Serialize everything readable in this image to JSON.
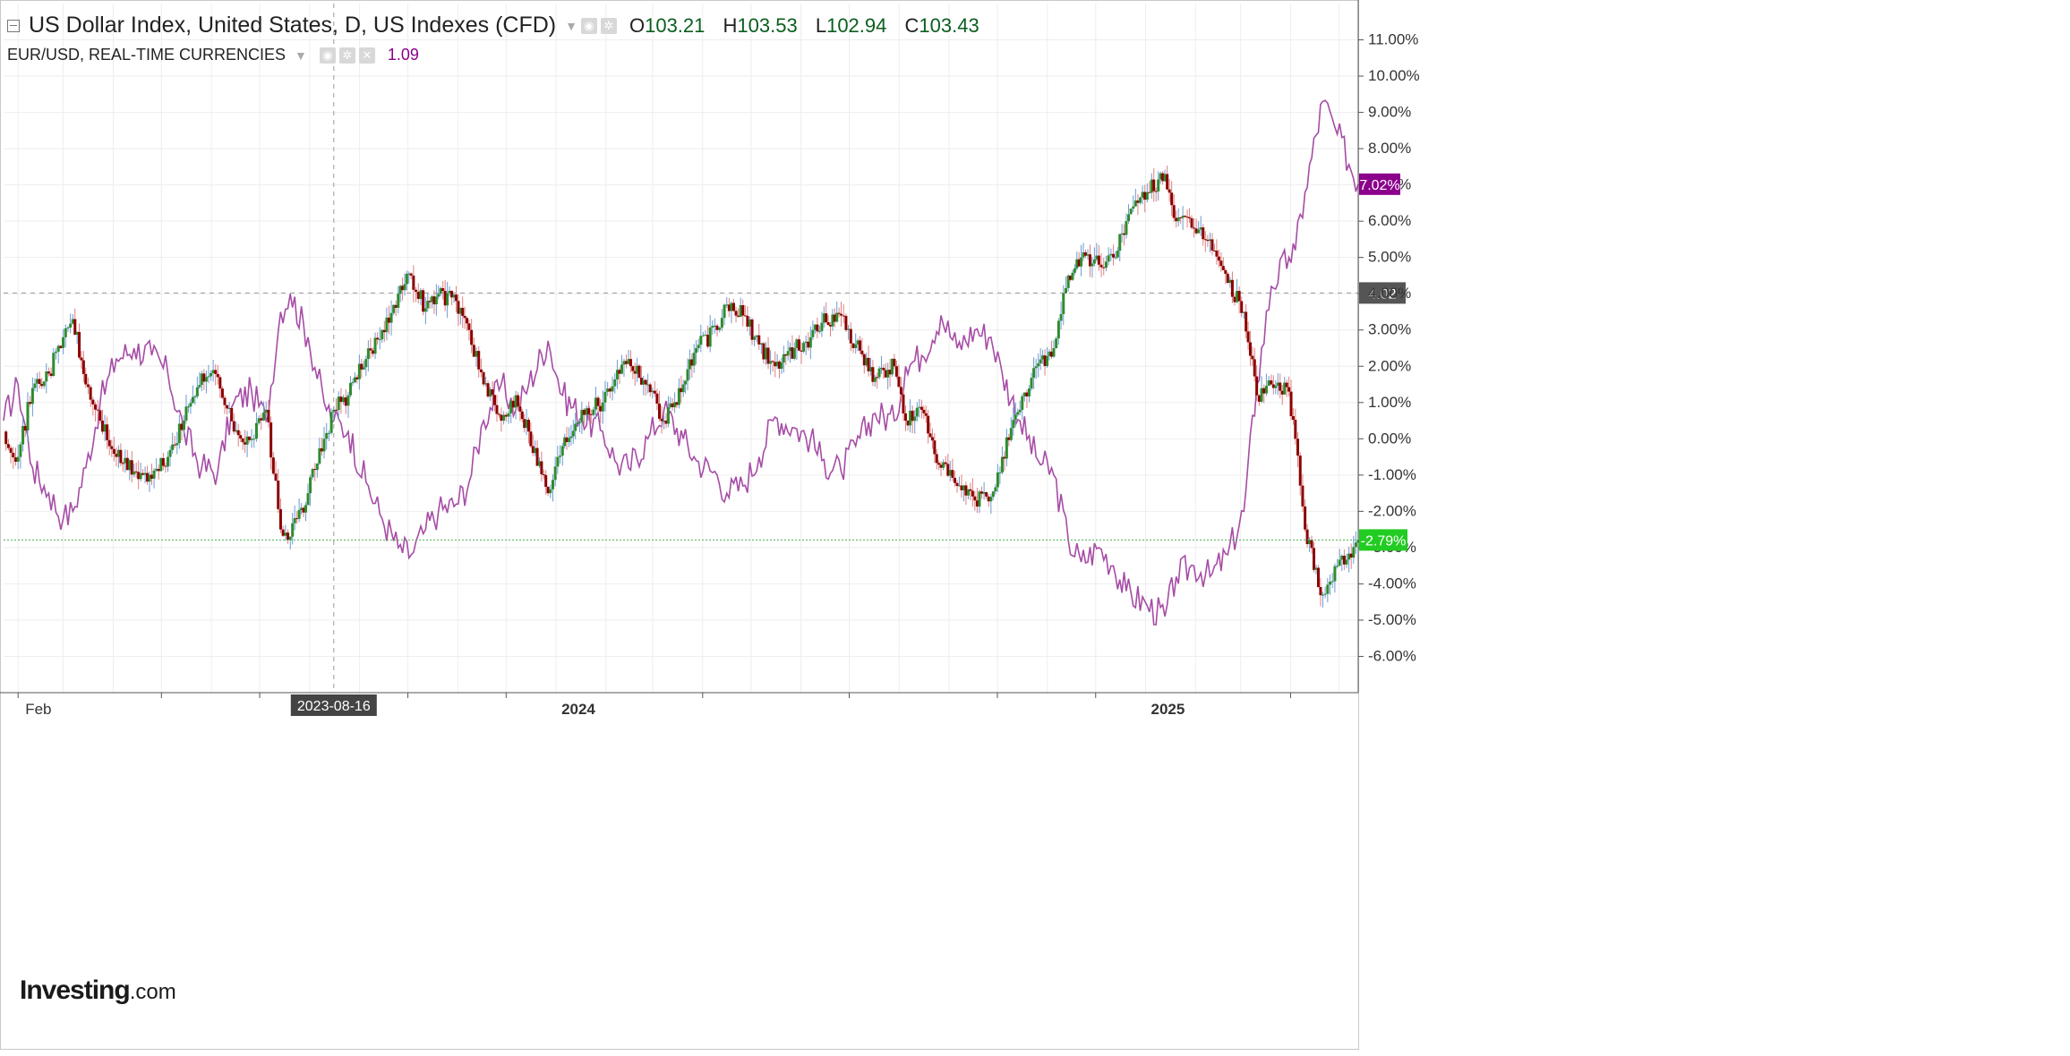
{
  "legend": {
    "primary_title": "US Dollar Index, United States, D, US Indexes (CFD)",
    "open_label": "O",
    "open": "103.21",
    "high_label": "H",
    "high": "103.53",
    "low_label": "L",
    "low": "102.94",
    "close_label": "C",
    "close": "103.43",
    "secondary_title": "EUR/USD, REAL-TIME CURRENCIES",
    "secondary_value": "1.09"
  },
  "logo": {
    "brand": "Investing",
    "suffix": ".com"
  },
  "colors": {
    "up_candle": "#2e8b2e",
    "down_candle": "#8b0000",
    "eurusd_line": "#a64ca6",
    "eurusd_badge": "#8b008b",
    "green_badge": "#22cc22",
    "grid": "#eeeeee"
  },
  "chart_data": {
    "type": "line",
    "ylim": [
      -7.0,
      12.0
    ],
    "y_ticks": [
      "11.00%",
      "10.00%",
      "9.00%",
      "8.00%",
      "7.00%",
      "6.00%",
      "5.00%",
      "4.00%",
      "3.00%",
      "2.00%",
      "1.00%",
      "0.00%",
      "-1.00%",
      "-2.00%",
      "-3.00%",
      "-4.00%",
      "-5.00%",
      "-6.00%"
    ],
    "x_range": [
      "2023-01-23",
      "2025-05-13"
    ],
    "x_ticks": [
      {
        "date": "2023-02-01",
        "label": "Feb"
      },
      {
        "date": "2024-01-01",
        "label": "2024"
      },
      {
        "date": "2025-01-01",
        "label": "2025"
      }
    ],
    "crosshair": {
      "date": "2023-08-16",
      "label": "2023-08-16",
      "y": 4.02,
      "y_label": "4.02"
    },
    "series": [
      {
        "name": "US Dollar Index",
        "style": "candles",
        "last_label": "-2.79%",
        "last": -2.79,
        "points": [
          [
            "2023-01-23",
            0.2
          ],
          [
            "2023-02-01",
            -0.5
          ],
          [
            "2023-02-10",
            1.4
          ],
          [
            "2023-02-20",
            1.8
          ],
          [
            "2023-03-01",
            2.8
          ],
          [
            "2023-03-07",
            3.3
          ],
          [
            "2023-03-15",
            1.5
          ],
          [
            "2023-03-24",
            0.5
          ],
          [
            "2023-04-03",
            -0.5
          ],
          [
            "2023-04-14",
            -0.9
          ],
          [
            "2023-04-25",
            -1.1
          ],
          [
            "2023-05-05",
            -0.5
          ],
          [
            "2023-05-15",
            0.5
          ],
          [
            "2023-05-26",
            1.8
          ],
          [
            "2023-06-05",
            1.7
          ],
          [
            "2023-06-15",
            0.2
          ],
          [
            "2023-06-26",
            0.0
          ],
          [
            "2023-07-05",
            0.8
          ],
          [
            "2023-07-14",
            -2.5
          ],
          [
            "2023-07-20",
            -2.7
          ],
          [
            "2023-07-31",
            -1.5
          ],
          [
            "2023-08-10",
            0.0
          ],
          [
            "2023-08-16",
            0.8
          ],
          [
            "2023-08-25",
            1.2
          ],
          [
            "2023-09-05",
            2.2
          ],
          [
            "2023-09-15",
            3.0
          ],
          [
            "2023-09-25",
            4.0
          ],
          [
            "2023-10-03",
            4.5
          ],
          [
            "2023-10-12",
            3.6
          ],
          [
            "2023-10-20",
            4.0
          ],
          [
            "2023-10-31",
            3.8
          ],
          [
            "2023-11-08",
            3.0
          ],
          [
            "2023-11-17",
            1.5
          ],
          [
            "2023-11-28",
            0.5
          ],
          [
            "2023-12-07",
            1.2
          ],
          [
            "2023-12-15",
            0.2
          ],
          [
            "2023-12-27",
            -1.5
          ],
          [
            "2024-01-05",
            -0.2
          ],
          [
            "2024-01-17",
            0.8
          ],
          [
            "2024-01-30",
            1.0
          ],
          [
            "2024-02-08",
            1.9
          ],
          [
            "2024-02-15",
            2.2
          ],
          [
            "2024-02-27",
            1.5
          ],
          [
            "2024-03-08",
            0.5
          ],
          [
            "2024-03-20",
            1.5
          ],
          [
            "2024-03-28",
            2.5
          ],
          [
            "2024-04-10",
            3.0
          ],
          [
            "2024-04-16",
            3.7
          ],
          [
            "2024-04-26",
            3.4
          ],
          [
            "2024-05-06",
            2.6
          ],
          [
            "2024-05-16",
            2.0
          ],
          [
            "2024-05-28",
            2.5
          ],
          [
            "2024-06-07",
            2.8
          ],
          [
            "2024-06-14",
            3.2
          ],
          [
            "2024-06-26",
            3.4
          ],
          [
            "2024-07-05",
            2.6
          ],
          [
            "2024-07-17",
            1.7
          ],
          [
            "2024-07-29",
            2.0
          ],
          [
            "2024-08-05",
            0.5
          ],
          [
            "2024-08-15",
            0.8
          ],
          [
            "2024-08-27",
            -0.8
          ],
          [
            "2024-09-06",
            -1.3
          ],
          [
            "2024-09-17",
            -1.7
          ],
          [
            "2024-09-27",
            -1.6
          ],
          [
            "2024-10-04",
            -0.5
          ],
          [
            "2024-10-15",
            0.8
          ],
          [
            "2024-10-25",
            2.0
          ],
          [
            "2024-11-05",
            2.5
          ],
          [
            "2024-11-14",
            4.5
          ],
          [
            "2024-11-22",
            5.0
          ],
          [
            "2024-12-03",
            4.8
          ],
          [
            "2024-12-12",
            5.0
          ],
          [
            "2024-12-20",
            6.0
          ],
          [
            "2025-01-02",
            6.8
          ],
          [
            "2025-01-13",
            7.3
          ],
          [
            "2025-01-20",
            6.0
          ],
          [
            "2025-01-31",
            5.8
          ],
          [
            "2025-02-10",
            5.5
          ],
          [
            "2025-02-21",
            4.3
          ],
          [
            "2025-03-03",
            3.5
          ],
          [
            "2025-03-11",
            1.2
          ],
          [
            "2025-03-20",
            1.5
          ],
          [
            "2025-03-31",
            1.3
          ],
          [
            "2025-04-04",
            0.0
          ],
          [
            "2025-04-10",
            -2.5
          ],
          [
            "2025-04-21",
            -4.3
          ],
          [
            "2025-04-30",
            -3.5
          ],
          [
            "2025-05-13",
            -2.79
          ]
        ]
      },
      {
        "name": "EUR/USD",
        "style": "line",
        "last_label": "7.02%",
        "last": 7.02,
        "points": [
          [
            "2023-01-23",
            0.5
          ],
          [
            "2023-02-01",
            1.5
          ],
          [
            "2023-02-10",
            -0.8
          ],
          [
            "2023-02-20",
            -1.5
          ],
          [
            "2023-03-01",
            -2.2
          ],
          [
            "2023-03-07",
            -2.0
          ],
          [
            "2023-03-15",
            -0.8
          ],
          [
            "2023-03-24",
            1.0
          ],
          [
            "2023-04-03",
            2.2
          ],
          [
            "2023-04-14",
            2.5
          ],
          [
            "2023-04-25",
            2.3
          ],
          [
            "2023-05-05",
            1.8
          ],
          [
            "2023-05-15",
            0.2
          ],
          [
            "2023-05-26",
            -0.8
          ],
          [
            "2023-06-05",
            -0.9
          ],
          [
            "2023-06-15",
            1.0
          ],
          [
            "2023-06-26",
            1.3
          ],
          [
            "2023-07-05",
            0.5
          ],
          [
            "2023-07-14",
            3.5
          ],
          [
            "2023-07-20",
            4.0
          ],
          [
            "2023-07-31",
            2.8
          ],
          [
            "2023-08-10",
            1.0
          ],
          [
            "2023-08-16",
            0.5
          ],
          [
            "2023-08-25",
            0.2
          ],
          [
            "2023-09-05",
            -1.2
          ],
          [
            "2023-09-15",
            -2.2
          ],
          [
            "2023-09-25",
            -3.0
          ],
          [
            "2023-10-03",
            -3.2
          ],
          [
            "2023-10-12",
            -2.5
          ],
          [
            "2023-10-20",
            -2.0
          ],
          [
            "2023-10-31",
            -1.8
          ],
          [
            "2023-11-08",
            -1.2
          ],
          [
            "2023-11-17",
            0.5
          ],
          [
            "2023-11-28",
            1.5
          ],
          [
            "2023-12-07",
            0.8
          ],
          [
            "2023-12-15",
            1.5
          ],
          [
            "2023-12-27",
            2.7
          ],
          [
            "2024-01-05",
            1.2
          ],
          [
            "2024-01-17",
            0.6
          ],
          [
            "2024-01-30",
            0.2
          ],
          [
            "2024-02-08",
            -0.7
          ],
          [
            "2024-02-15",
            -0.8
          ],
          [
            "2024-02-27",
            0.0
          ],
          [
            "2024-03-08",
            0.8
          ],
          [
            "2024-03-20",
            0.0
          ],
          [
            "2024-03-28",
            -0.6
          ],
          [
            "2024-04-10",
            -1.0
          ],
          [
            "2024-04-16",
            -1.5
          ],
          [
            "2024-04-26",
            -1.3
          ],
          [
            "2024-05-06",
            -0.5
          ],
          [
            "2024-05-16",
            0.6
          ],
          [
            "2024-05-28",
            0.3
          ],
          [
            "2024-06-07",
            0.0
          ],
          [
            "2024-06-14",
            -0.6
          ],
          [
            "2024-06-26",
            -0.9
          ],
          [
            "2024-07-05",
            -0.2
          ],
          [
            "2024-07-17",
            0.7
          ],
          [
            "2024-07-29",
            0.5
          ],
          [
            "2024-08-05",
            2.0
          ],
          [
            "2024-08-15",
            2.3
          ],
          [
            "2024-08-27",
            3.4
          ],
          [
            "2024-09-06",
            2.5
          ],
          [
            "2024-09-17",
            3.0
          ],
          [
            "2024-09-27",
            2.8
          ],
          [
            "2024-10-04",
            1.8
          ],
          [
            "2024-10-15",
            0.5
          ],
          [
            "2024-10-25",
            -0.5
          ],
          [
            "2024-11-05",
            -1.0
          ],
          [
            "2024-11-14",
            -2.8
          ],
          [
            "2024-11-22",
            -3.4
          ],
          [
            "2024-12-03",
            -3.0
          ],
          [
            "2024-12-12",
            -3.5
          ],
          [
            "2024-12-20",
            -4.2
          ],
          [
            "2025-01-02",
            -4.6
          ],
          [
            "2025-01-13",
            -4.9
          ],
          [
            "2025-01-20",
            -3.8
          ],
          [
            "2025-01-31",
            -3.5
          ],
          [
            "2025-02-10",
            -3.8
          ],
          [
            "2025-02-21",
            -3.2
          ],
          [
            "2025-03-03",
            -2.0
          ],
          [
            "2025-03-11",
            1.5
          ],
          [
            "2025-03-20",
            4.2
          ],
          [
            "2025-03-31",
            5.0
          ],
          [
            "2025-04-04",
            5.2
          ],
          [
            "2025-04-10",
            6.8
          ],
          [
            "2025-04-21",
            9.3
          ],
          [
            "2025-04-30",
            8.4
          ],
          [
            "2025-05-13",
            7.02
          ]
        ]
      }
    ]
  }
}
